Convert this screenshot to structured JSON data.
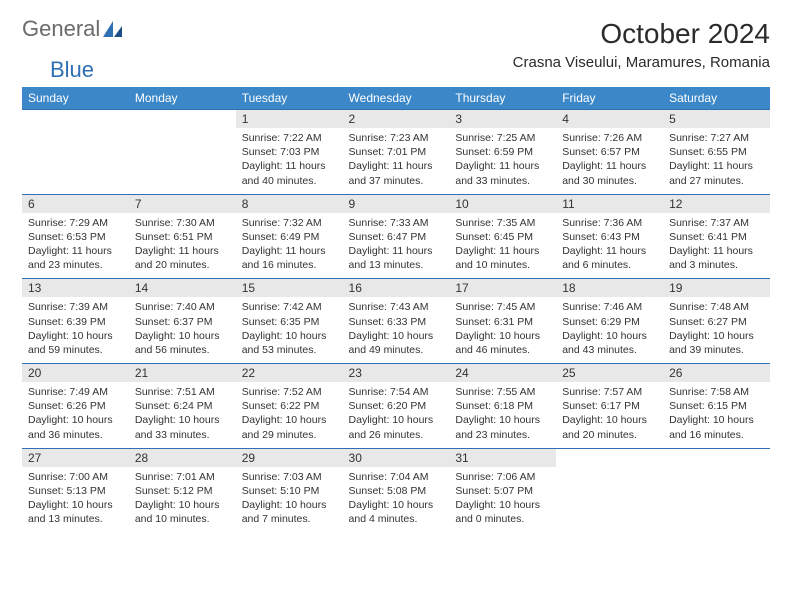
{
  "logo": {
    "word1": "General",
    "word2": "Blue"
  },
  "title": "October 2024",
  "location": "Crasna Viseului, Maramures, Romania",
  "colors": {
    "header_bg": "#3b87c8",
    "header_text": "#ffffff",
    "border": "#2f6fb3",
    "daynum_bg": "#e8e8e8",
    "text": "#333333",
    "logo_gray": "#6a6a6a",
    "logo_blue": "#2f6fb3"
  },
  "day_headers": [
    "Sunday",
    "Monday",
    "Tuesday",
    "Wednesday",
    "Thursday",
    "Friday",
    "Saturday"
  ],
  "weeks": [
    [
      null,
      null,
      {
        "n": "1",
        "sr": "7:22 AM",
        "ss": "7:03 PM",
        "dl": "11 hours and 40 minutes."
      },
      {
        "n": "2",
        "sr": "7:23 AM",
        "ss": "7:01 PM",
        "dl": "11 hours and 37 minutes."
      },
      {
        "n": "3",
        "sr": "7:25 AM",
        "ss": "6:59 PM",
        "dl": "11 hours and 33 minutes."
      },
      {
        "n": "4",
        "sr": "7:26 AM",
        "ss": "6:57 PM",
        "dl": "11 hours and 30 minutes."
      },
      {
        "n": "5",
        "sr": "7:27 AM",
        "ss": "6:55 PM",
        "dl": "11 hours and 27 minutes."
      }
    ],
    [
      {
        "n": "6",
        "sr": "7:29 AM",
        "ss": "6:53 PM",
        "dl": "11 hours and 23 minutes."
      },
      {
        "n": "7",
        "sr": "7:30 AM",
        "ss": "6:51 PM",
        "dl": "11 hours and 20 minutes."
      },
      {
        "n": "8",
        "sr": "7:32 AM",
        "ss": "6:49 PM",
        "dl": "11 hours and 16 minutes."
      },
      {
        "n": "9",
        "sr": "7:33 AM",
        "ss": "6:47 PM",
        "dl": "11 hours and 13 minutes."
      },
      {
        "n": "10",
        "sr": "7:35 AM",
        "ss": "6:45 PM",
        "dl": "11 hours and 10 minutes."
      },
      {
        "n": "11",
        "sr": "7:36 AM",
        "ss": "6:43 PM",
        "dl": "11 hours and 6 minutes."
      },
      {
        "n": "12",
        "sr": "7:37 AM",
        "ss": "6:41 PM",
        "dl": "11 hours and 3 minutes."
      }
    ],
    [
      {
        "n": "13",
        "sr": "7:39 AM",
        "ss": "6:39 PM",
        "dl": "10 hours and 59 minutes."
      },
      {
        "n": "14",
        "sr": "7:40 AM",
        "ss": "6:37 PM",
        "dl": "10 hours and 56 minutes."
      },
      {
        "n": "15",
        "sr": "7:42 AM",
        "ss": "6:35 PM",
        "dl": "10 hours and 53 minutes."
      },
      {
        "n": "16",
        "sr": "7:43 AM",
        "ss": "6:33 PM",
        "dl": "10 hours and 49 minutes."
      },
      {
        "n": "17",
        "sr": "7:45 AM",
        "ss": "6:31 PM",
        "dl": "10 hours and 46 minutes."
      },
      {
        "n": "18",
        "sr": "7:46 AM",
        "ss": "6:29 PM",
        "dl": "10 hours and 43 minutes."
      },
      {
        "n": "19",
        "sr": "7:48 AM",
        "ss": "6:27 PM",
        "dl": "10 hours and 39 minutes."
      }
    ],
    [
      {
        "n": "20",
        "sr": "7:49 AM",
        "ss": "6:26 PM",
        "dl": "10 hours and 36 minutes."
      },
      {
        "n": "21",
        "sr": "7:51 AM",
        "ss": "6:24 PM",
        "dl": "10 hours and 33 minutes."
      },
      {
        "n": "22",
        "sr": "7:52 AM",
        "ss": "6:22 PM",
        "dl": "10 hours and 29 minutes."
      },
      {
        "n": "23",
        "sr": "7:54 AM",
        "ss": "6:20 PM",
        "dl": "10 hours and 26 minutes."
      },
      {
        "n": "24",
        "sr": "7:55 AM",
        "ss": "6:18 PM",
        "dl": "10 hours and 23 minutes."
      },
      {
        "n": "25",
        "sr": "7:57 AM",
        "ss": "6:17 PM",
        "dl": "10 hours and 20 minutes."
      },
      {
        "n": "26",
        "sr": "7:58 AM",
        "ss": "6:15 PM",
        "dl": "10 hours and 16 minutes."
      }
    ],
    [
      {
        "n": "27",
        "sr": "7:00 AM",
        "ss": "5:13 PM",
        "dl": "10 hours and 13 minutes."
      },
      {
        "n": "28",
        "sr": "7:01 AM",
        "ss": "5:12 PM",
        "dl": "10 hours and 10 minutes."
      },
      {
        "n": "29",
        "sr": "7:03 AM",
        "ss": "5:10 PM",
        "dl": "10 hours and 7 minutes."
      },
      {
        "n": "30",
        "sr": "7:04 AM",
        "ss": "5:08 PM",
        "dl": "10 hours and 4 minutes."
      },
      {
        "n": "31",
        "sr": "7:06 AM",
        "ss": "5:07 PM",
        "dl": "10 hours and 0 minutes."
      },
      null,
      null
    ]
  ],
  "labels": {
    "sunrise": "Sunrise:",
    "sunset": "Sunset:",
    "daylight": "Daylight:"
  }
}
